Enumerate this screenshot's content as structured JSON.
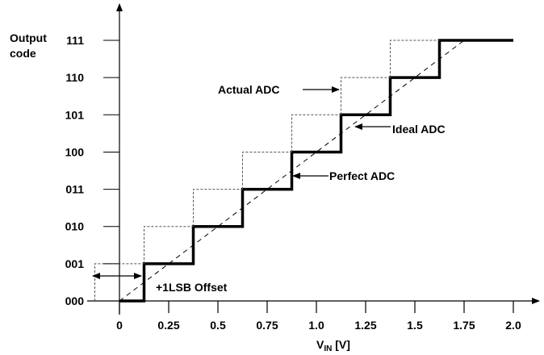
{
  "chart_data": {
    "type": "line",
    "ylabel_lines": [
      "Output",
      "code"
    ],
    "xlabel_main": "V",
    "xlabel_sub": "IN",
    "xlabel_unit": " [V]",
    "x_ticks": [
      "0",
      "0.25",
      "0.5",
      "0.75",
      "1.0",
      "1.25",
      "1.5",
      "1.75",
      "2.0"
    ],
    "x_tick_values": [
      0,
      0.25,
      0.5,
      0.75,
      1.0,
      1.25,
      1.5,
      1.75,
      2.0
    ],
    "y_ticks": [
      "000",
      "001",
      "010",
      "011",
      "100",
      "101",
      "110",
      "111"
    ],
    "xlim": [
      -0.15,
      2.1
    ],
    "ylim": [
      0,
      7
    ],
    "series": [
      {
        "name": "Ideal ADC",
        "style": "dashed",
        "x": [
          0,
          1.75
        ],
        "y": [
          0,
          7
        ]
      },
      {
        "name": "Perfect ADC",
        "style": "thick-solid",
        "step_edges": [
          0.125,
          0.375,
          0.625,
          0.875,
          1.125,
          1.375,
          1.625
        ],
        "x_end": 2.0
      },
      {
        "name": "Actual ADC",
        "style": "dotted",
        "step_edges": [
          -0.125,
          0.125,
          0.375,
          0.625,
          0.875,
          1.125,
          1.375
        ]
      }
    ],
    "annotations": {
      "actual": "Actual ADC",
      "ideal": "Ideal ADC",
      "perfect": "Perfect ADC",
      "offset": "+1LSB Offset"
    }
  }
}
